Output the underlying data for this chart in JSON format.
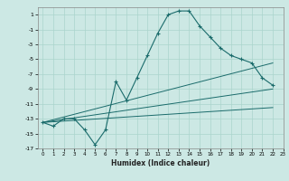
{
  "title": "",
  "xlabel": "Humidex (Indice chaleur)",
  "ylabel": "",
  "bg_color": "#cce8e4",
  "grid_color": "#aad4cc",
  "line_color": "#1a6b6b",
  "xlim": [
    -0.5,
    23
  ],
  "ylim": [
    -17,
    2
  ],
  "xticks": [
    0,
    1,
    2,
    3,
    4,
    5,
    6,
    7,
    8,
    9,
    10,
    11,
    12,
    13,
    14,
    15,
    16,
    17,
    18,
    19,
    20,
    21,
    22,
    23
  ],
  "yticks": [
    1,
    -1,
    -3,
    -5,
    -7,
    -9,
    -11,
    -13,
    -15,
    -17
  ],
  "curve1_x": [
    0,
    1,
    2,
    3,
    4,
    5,
    6,
    7,
    8,
    9,
    10,
    11,
    12,
    13,
    14,
    15,
    16,
    17,
    18,
    19,
    20,
    21,
    22
  ],
  "curve1_y": [
    -13.5,
    -14.0,
    -13.0,
    -13.0,
    -14.5,
    -16.5,
    -14.5,
    -8.0,
    -10.5,
    -7.5,
    -4.5,
    -1.5,
    1.0,
    1.5,
    1.5,
    -0.5,
    -2.0,
    -3.5,
    -4.5,
    -5.0,
    -5.5,
    -7.5,
    -8.5
  ],
  "line1_x": [
    0,
    22
  ],
  "line1_y": [
    -13.5,
    -9.0
  ],
  "line2_x": [
    0,
    22
  ],
  "line2_y": [
    -13.5,
    -11.5
  ],
  "line3_x": [
    0,
    22
  ],
  "line3_y": [
    -13.5,
    -5.5
  ]
}
